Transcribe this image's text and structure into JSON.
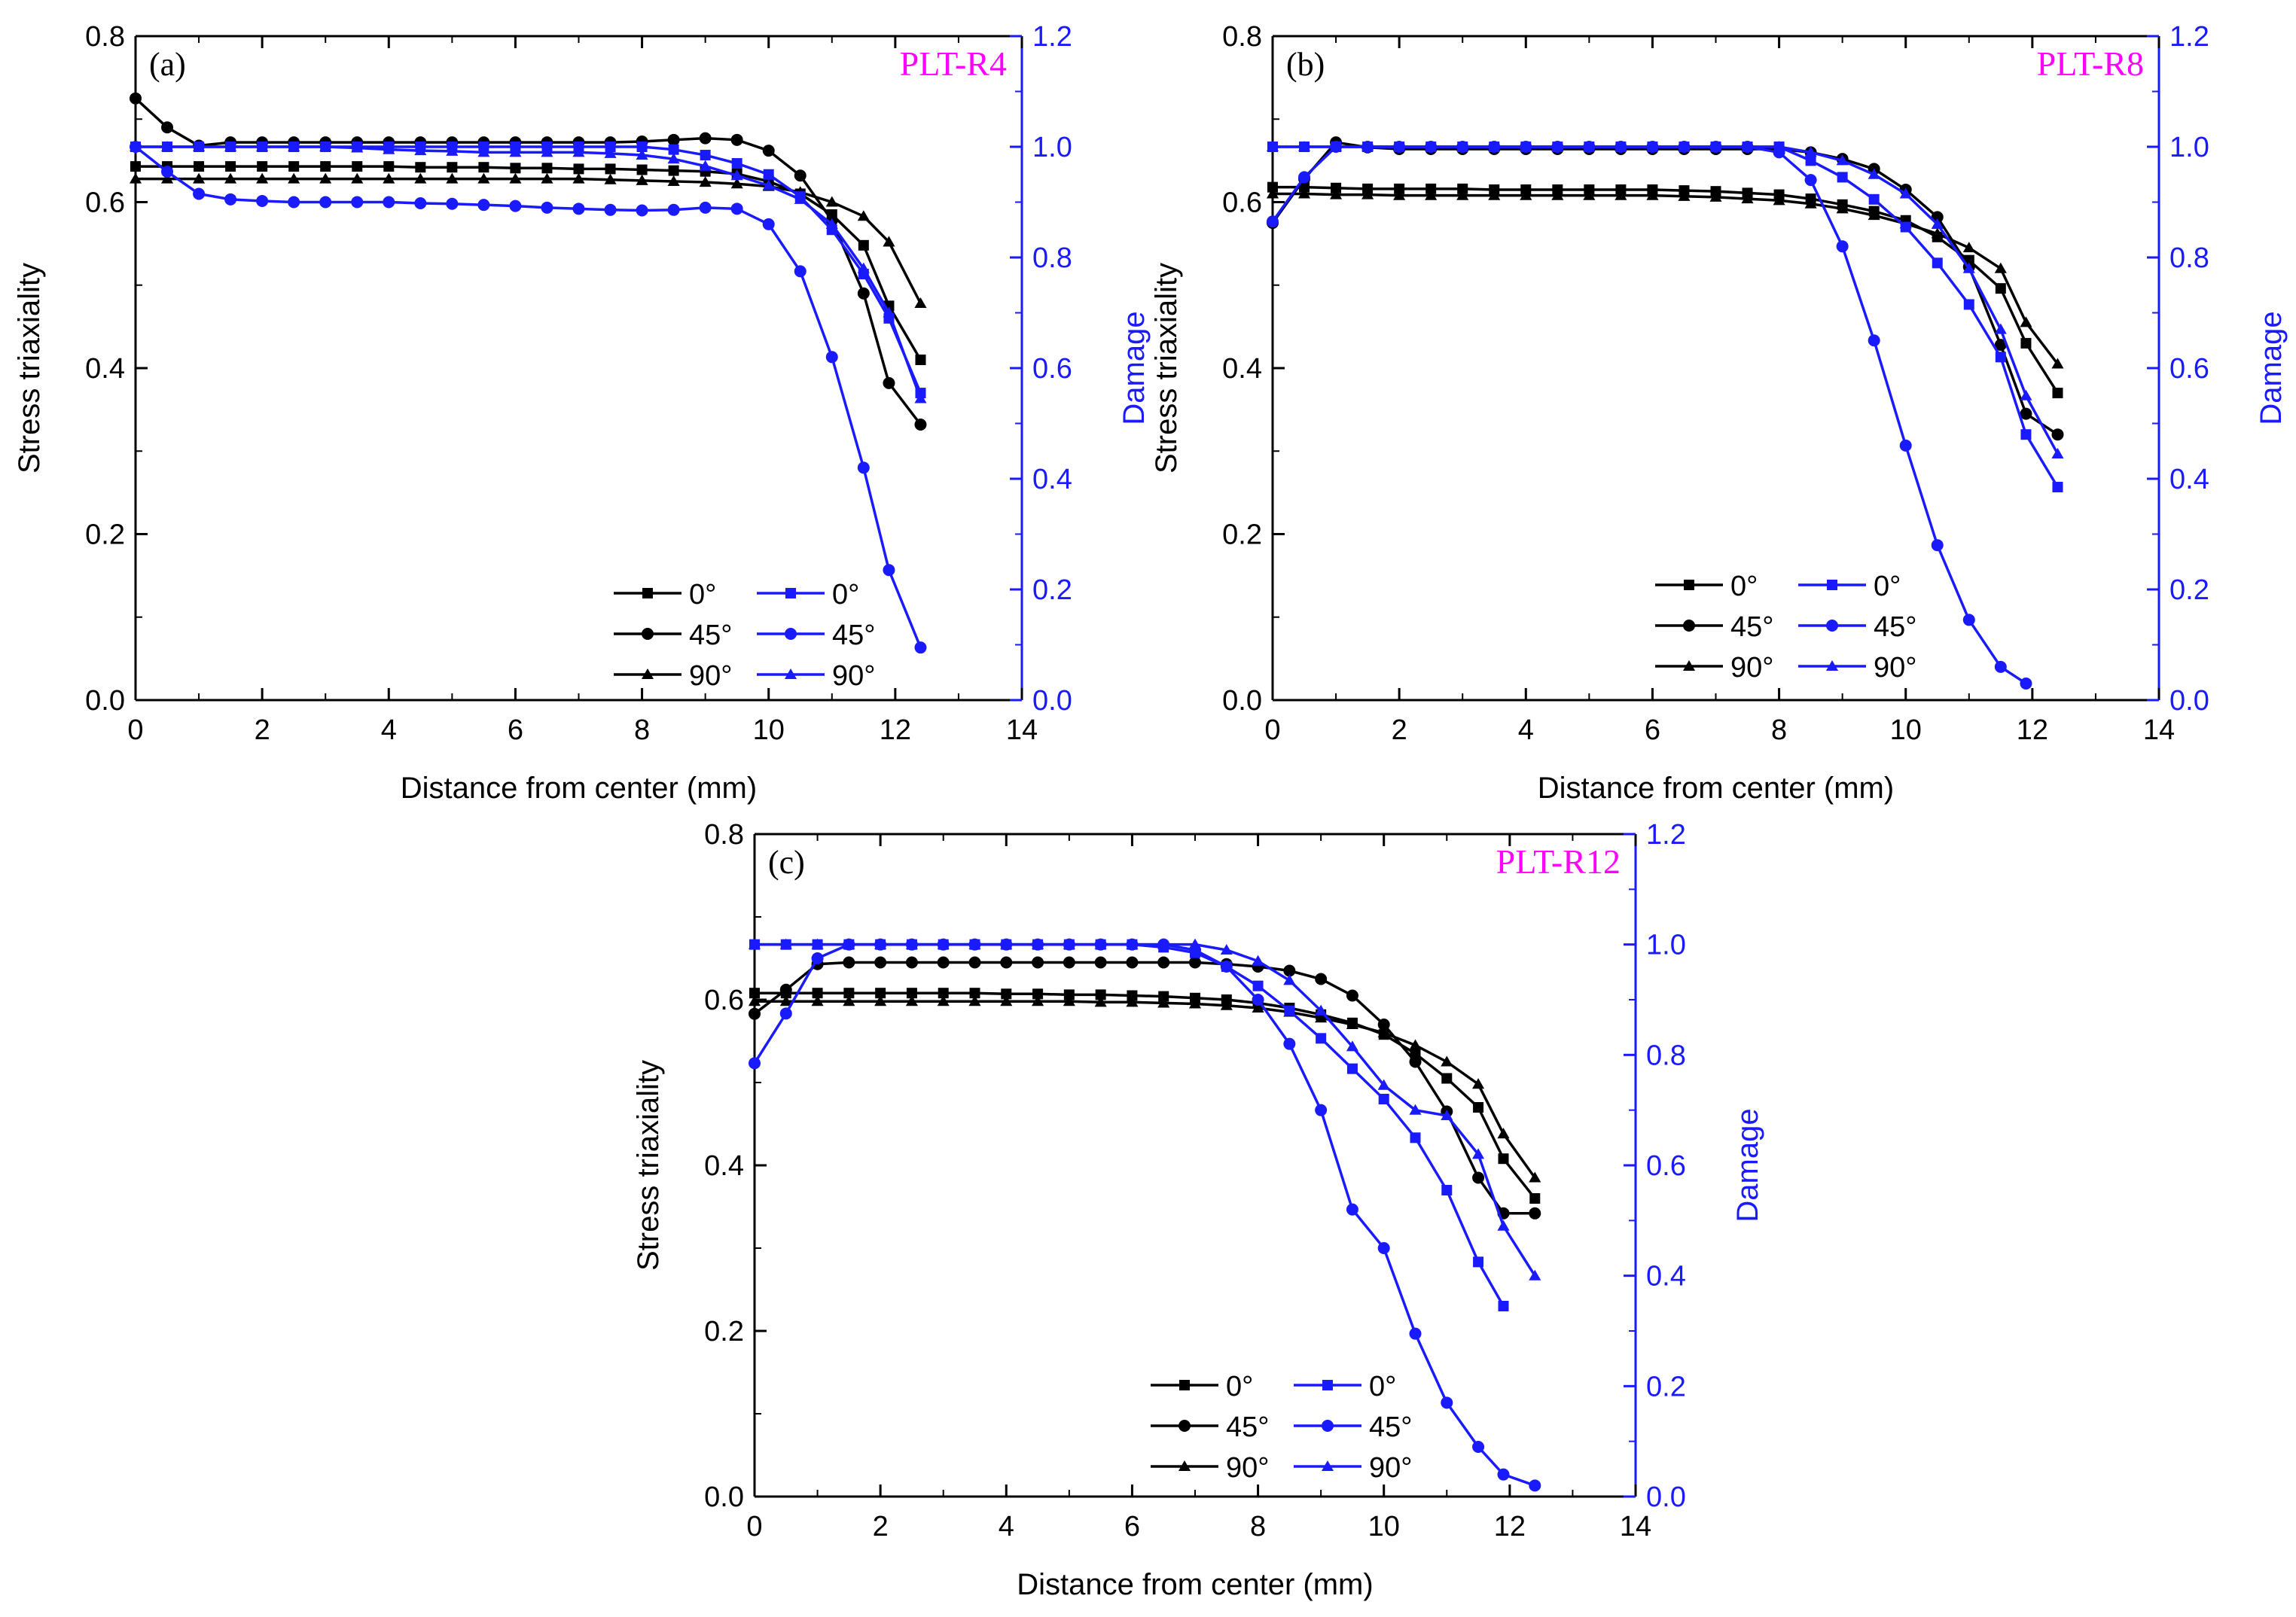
{
  "colors": {
    "left": "#000000",
    "right": "#1a1aff",
    "tag": "#ff00ff"
  },
  "legend": {
    "labels": [
      "0°",
      "45°",
      "90°"
    ]
  },
  "chart_data": [
    {
      "type": "line",
      "panel": "(a)",
      "title": "PLT-R4",
      "xlabel": "Distance from center (mm)",
      "ylabel": "Stress triaxiality",
      "y2label": "Damage",
      "xlim": [
        0,
        14
      ],
      "ylim": [
        0,
        0.8
      ],
      "y2lim": [
        0,
        1.2
      ],
      "xticks": [
        "0",
        "2",
        "4",
        "6",
        "8",
        "10",
        "12",
        "14"
      ],
      "yticks": [
        "0.0",
        "0.2",
        "0.4",
        "0.6",
        "0.8"
      ],
      "y2ticks": [
        "0.0",
        "0.2",
        "0.4",
        "0.6",
        "0.8",
        "1.0",
        "1.2"
      ],
      "x": [
        0,
        0.5,
        1,
        1.5,
        2,
        2.5,
        3,
        3.5,
        4,
        4.5,
        5,
        5.5,
        6,
        6.5,
        7,
        7.5,
        8,
        8.5,
        9,
        9.5,
        10,
        10.5,
        11,
        11.5,
        11.9,
        12.4
      ],
      "series": [
        {
          "name": "0°",
          "axis": "left",
          "marker": "square",
          "values": [
            0.643,
            0.643,
            0.643,
            0.643,
            0.643,
            0.643,
            0.643,
            0.643,
            0.643,
            0.642,
            0.642,
            0.642,
            0.641,
            0.641,
            0.64,
            0.64,
            0.639,
            0.638,
            0.637,
            0.634,
            0.625,
            0.61,
            0.585,
            0.548,
            0.475,
            0.41
          ]
        },
        {
          "name": "45°",
          "axis": "left",
          "marker": "circle",
          "values": [
            0.725,
            0.69,
            0.668,
            0.672,
            0.672,
            0.672,
            0.672,
            0.672,
            0.672,
            0.672,
            0.672,
            0.672,
            0.672,
            0.672,
            0.672,
            0.672,
            0.673,
            0.675,
            0.677,
            0.675,
            0.662,
            0.632,
            0.578,
            0.49,
            0.382,
            0.332
          ]
        },
        {
          "name": "90°",
          "axis": "left",
          "marker": "triangle",
          "values": [
            0.628,
            0.628,
            0.628,
            0.628,
            0.628,
            0.628,
            0.628,
            0.628,
            0.628,
            0.628,
            0.628,
            0.628,
            0.628,
            0.628,
            0.628,
            0.627,
            0.626,
            0.625,
            0.624,
            0.622,
            0.619,
            0.612,
            0.6,
            0.583,
            0.552,
            0.478
          ]
        },
        {
          "name": "0°",
          "axis": "right",
          "marker": "square",
          "values": [
            1.0,
            1.0,
            1.0,
            1.0,
            1.0,
            1.0,
            1.0,
            1.0,
            1.0,
            1.0,
            1.0,
            1.0,
            1.0,
            1.0,
            1.0,
            1.0,
            1.0,
            0.995,
            0.985,
            0.97,
            0.95,
            0.91,
            0.85,
            0.77,
            0.69,
            0.555
          ]
        },
        {
          "name": "45°",
          "axis": "right",
          "marker": "circle",
          "values": [
            1.0,
            0.955,
            0.915,
            0.905,
            0.902,
            0.9,
            0.9,
            0.9,
            0.9,
            0.898,
            0.897,
            0.895,
            0.893,
            0.89,
            0.888,
            0.886,
            0.885,
            0.886,
            0.89,
            0.888,
            0.86,
            0.775,
            0.62,
            0.42,
            0.235,
            0.095
          ]
        },
        {
          "name": "90°",
          "axis": "right",
          "marker": "triangle",
          "values": [
            1.0,
            1.0,
            1.0,
            1.0,
            1.0,
            1.0,
            1.0,
            0.998,
            0.995,
            0.993,
            0.992,
            0.99,
            0.99,
            0.99,
            0.99,
            0.988,
            0.985,
            0.978,
            0.965,
            0.948,
            0.93,
            0.905,
            0.86,
            0.78,
            0.7,
            0.545
          ]
        }
      ]
    },
    {
      "type": "line",
      "panel": "(b)",
      "title": "PLT-R8",
      "xlabel": "Distance from center (mm)",
      "ylabel": "Stress triaxiality",
      "y2label": "Damage",
      "xlim": [
        0,
        14
      ],
      "ylim": [
        0,
        0.8
      ],
      "y2lim": [
        0,
        1.2
      ],
      "xticks": [
        "0",
        "2",
        "4",
        "6",
        "8",
        "10",
        "12",
        "14"
      ],
      "yticks": [
        "0.0",
        "0.2",
        "0.4",
        "0.6",
        "0.8"
      ],
      "y2ticks": [
        "0.0",
        "0.2",
        "0.4",
        "0.6",
        "0.8",
        "1.0",
        "1.2"
      ],
      "x": [
        0,
        0.5,
        1,
        1.5,
        2,
        2.5,
        3,
        3.5,
        4,
        4.5,
        5,
        5.5,
        6,
        6.5,
        7,
        7.5,
        8,
        8.5,
        9,
        9.5,
        10,
        10.5,
        11,
        11.5,
        11.9,
        12.4
      ],
      "series": [
        {
          "name": "0°",
          "axis": "left",
          "marker": "square",
          "values": [
            0.618,
            0.618,
            0.617,
            0.616,
            0.616,
            0.616,
            0.616,
            0.615,
            0.615,
            0.615,
            0.615,
            0.615,
            0.615,
            0.614,
            0.613,
            0.611,
            0.609,
            0.604,
            0.597,
            0.589,
            0.578,
            0.558,
            0.53,
            0.496,
            0.43,
            0.37
          ]
        },
        {
          "name": "45°",
          "axis": "left",
          "marker": "circle",
          "values": [
            0.575,
            0.628,
            0.672,
            0.666,
            0.664,
            0.664,
            0.664,
            0.664,
            0.664,
            0.664,
            0.664,
            0.664,
            0.664,
            0.664,
            0.664,
            0.664,
            0.664,
            0.66,
            0.652,
            0.64,
            0.615,
            0.582,
            0.522,
            0.428,
            0.345,
            0.32
          ]
        },
        {
          "name": "90°",
          "axis": "left",
          "marker": "triangle",
          "values": [
            0.61,
            0.61,
            0.609,
            0.609,
            0.608,
            0.608,
            0.608,
            0.608,
            0.608,
            0.608,
            0.608,
            0.608,
            0.608,
            0.607,
            0.606,
            0.604,
            0.602,
            0.598,
            0.592,
            0.584,
            0.574,
            0.562,
            0.545,
            0.52,
            0.455,
            0.405
          ]
        },
        {
          "name": "0°",
          "axis": "right",
          "marker": "square",
          "values": [
            1.0,
            1.0,
            1.0,
            1.0,
            1.0,
            1.0,
            1.0,
            1.0,
            1.0,
            1.0,
            1.0,
            1.0,
            1.0,
            1.0,
            1.0,
            1.0,
            1.0,
            0.975,
            0.945,
            0.905,
            0.855,
            0.79,
            0.715,
            0.62,
            0.48,
            0.385
          ]
        },
        {
          "name": "45°",
          "axis": "right",
          "marker": "circle",
          "values": [
            0.865,
            0.945,
            1.0,
            1.0,
            1.0,
            1.0,
            1.0,
            1.0,
            1.0,
            1.0,
            1.0,
            1.0,
            1.0,
            1.0,
            1.0,
            1.0,
            0.99,
            0.94,
            0.82,
            0.65,
            0.46,
            0.28,
            0.145,
            0.06,
            0.03,
            null
          ]
        },
        {
          "name": "90°",
          "axis": "right",
          "marker": "triangle",
          "values": [
            1.0,
            1.0,
            1.0,
            1.0,
            1.0,
            1.0,
            1.0,
            1.0,
            1.0,
            1.0,
            1.0,
            1.0,
            1.0,
            1.0,
            1.0,
            1.0,
            1.0,
            0.99,
            0.975,
            0.95,
            0.915,
            0.86,
            0.78,
            0.67,
            0.55,
            0.445
          ]
        }
      ]
    },
    {
      "type": "line",
      "panel": "(c)",
      "title": "PLT-R12",
      "xlabel": "Distance from center (mm)",
      "ylabel": "Stress triaxiality",
      "y2label": "Damage",
      "xlim": [
        0,
        14
      ],
      "ylim": [
        0,
        0.8
      ],
      "y2lim": [
        0,
        1.2
      ],
      "xticks": [
        "0",
        "2",
        "4",
        "6",
        "8",
        "10",
        "12",
        "14"
      ],
      "yticks": [
        "0.0",
        "0.2",
        "0.4",
        "0.6",
        "0.8"
      ],
      "y2ticks": [
        "0.0",
        "0.2",
        "0.4",
        "0.6",
        "0.8",
        "1.0",
        "1.2"
      ],
      "x": [
        0,
        0.5,
        1,
        1.5,
        2,
        2.5,
        3,
        3.5,
        4,
        4.5,
        5,
        5.5,
        6,
        6.5,
        7,
        7.5,
        8,
        8.5,
        9,
        9.5,
        10,
        10.5,
        11,
        11.5,
        11.9,
        12.4
      ],
      "series": [
        {
          "name": "0°",
          "axis": "left",
          "marker": "square",
          "values": [
            0.608,
            0.608,
            0.608,
            0.608,
            0.608,
            0.608,
            0.608,
            0.608,
            0.607,
            0.607,
            0.606,
            0.606,
            0.605,
            0.604,
            0.602,
            0.6,
            0.596,
            0.59,
            0.582,
            0.572,
            0.558,
            0.535,
            0.505,
            0.47,
            0.408,
            0.36
          ]
        },
        {
          "name": "45°",
          "axis": "left",
          "marker": "circle",
          "values": [
            0.583,
            0.612,
            0.643,
            0.645,
            0.645,
            0.645,
            0.645,
            0.645,
            0.645,
            0.645,
            0.645,
            0.645,
            0.645,
            0.645,
            0.645,
            0.643,
            0.64,
            0.635,
            0.625,
            0.605,
            0.57,
            0.525,
            0.465,
            0.385,
            0.342,
            0.342
          ]
        },
        {
          "name": "90°",
          "axis": "left",
          "marker": "triangle",
          "values": [
            0.598,
            0.598,
            0.598,
            0.598,
            0.598,
            0.598,
            0.598,
            0.598,
            0.598,
            0.598,
            0.598,
            0.597,
            0.597,
            0.596,
            0.595,
            0.593,
            0.59,
            0.585,
            0.578,
            0.57,
            0.56,
            0.545,
            0.525,
            0.498,
            0.438,
            0.385
          ]
        },
        {
          "name": "0°",
          "axis": "right",
          "marker": "square",
          "values": [
            1.0,
            1.0,
            1.0,
            1.0,
            1.0,
            1.0,
            1.0,
            1.0,
            1.0,
            1.0,
            1.0,
            1.0,
            1.0,
            0.995,
            0.985,
            0.96,
            0.925,
            0.88,
            0.83,
            0.775,
            0.72,
            0.65,
            0.555,
            0.425,
            0.345,
            null
          ]
        },
        {
          "name": "45°",
          "axis": "right",
          "marker": "circle",
          "values": [
            0.785,
            0.875,
            0.975,
            1.0,
            1.0,
            1.0,
            1.0,
            1.0,
            1.0,
            1.0,
            1.0,
            1.0,
            1.0,
            1.0,
            0.99,
            0.96,
            0.9,
            0.82,
            0.7,
            0.52,
            0.45,
            0.295,
            0.17,
            0.09,
            0.04,
            0.02
          ]
        },
        {
          "name": "90°",
          "axis": "right",
          "marker": "triangle",
          "values": [
            1.0,
            1.0,
            1.0,
            1.0,
            1.0,
            1.0,
            1.0,
            1.0,
            1.0,
            1.0,
            1.0,
            1.0,
            1.0,
            1.0,
            1.0,
            0.99,
            0.97,
            0.935,
            0.88,
            0.815,
            0.745,
            0.7,
            0.69,
            0.62,
            0.49,
            0.4
          ]
        }
      ]
    }
  ]
}
